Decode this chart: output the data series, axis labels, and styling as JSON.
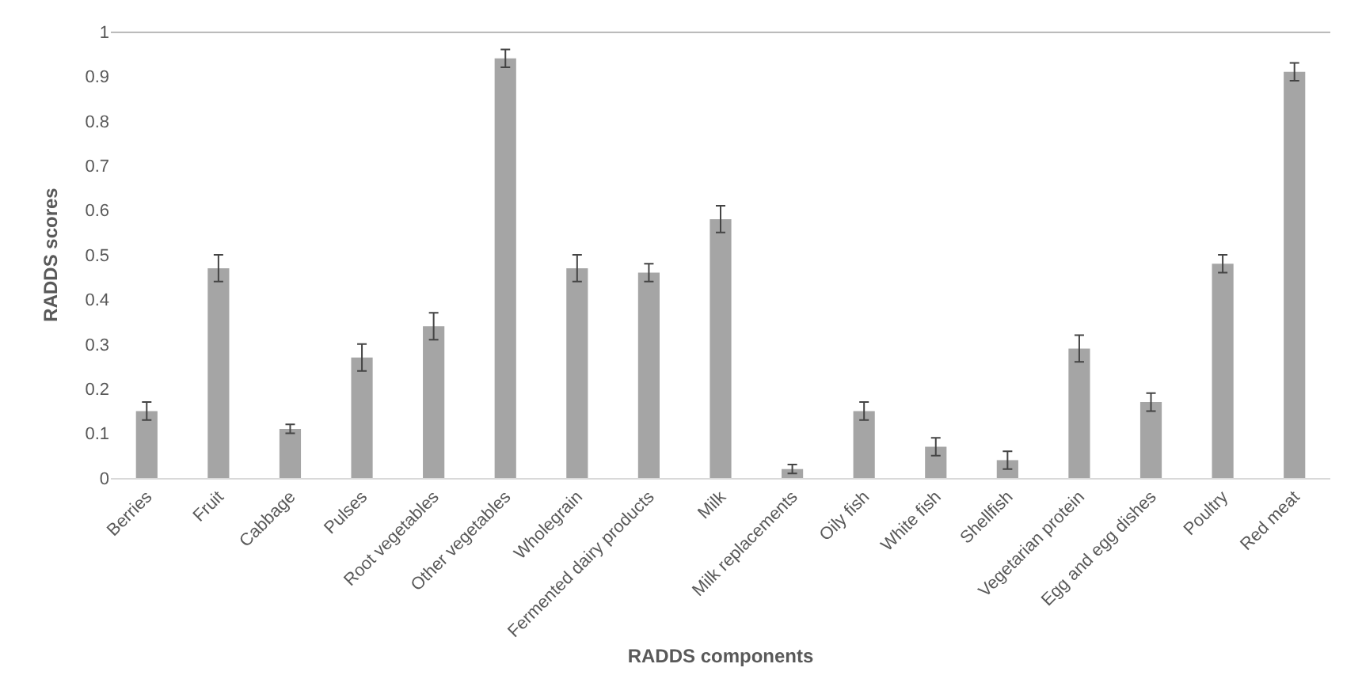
{
  "chart_data": {
    "type": "bar",
    "xlabel": "RADDS components",
    "ylabel": "RADDS scores",
    "categories": [
      "Berries",
      "Fruit",
      "Cabbage",
      "Pulses",
      "Root vegetables",
      "Other vegetables",
      "Wholegrain",
      "Fermented dairy products",
      "Milk",
      "Milk replacements",
      "Oily fish",
      "White fish",
      "Shellfish",
      "Vegetarian protein",
      "Egg and egg dishes",
      "Poultry",
      "Red meat"
    ],
    "values": [
      0.15,
      0.47,
      0.11,
      0.27,
      0.34,
      0.94,
      0.47,
      0.46,
      0.58,
      0.02,
      0.15,
      0.07,
      0.04,
      0.29,
      0.17,
      0.48,
      0.91
    ],
    "errors": [
      0.02,
      0.03,
      0.01,
      0.03,
      0.03,
      0.02,
      0.03,
      0.02,
      0.03,
      0.01,
      0.02,
      0.02,
      0.02,
      0.03,
      0.02,
      0.02,
      0.02
    ],
    "color": "#a5a5a5",
    "ylim": [
      0,
      1
    ],
    "yticks": [
      0,
      0.1,
      0.2,
      0.3,
      0.4,
      0.5,
      0.6,
      0.7,
      0.8,
      0.9,
      1
    ],
    "ref_lines": [
      {
        "axis": "y",
        "value": 1,
        "color": "#a0a0a0"
      }
    ],
    "grid": false
  }
}
